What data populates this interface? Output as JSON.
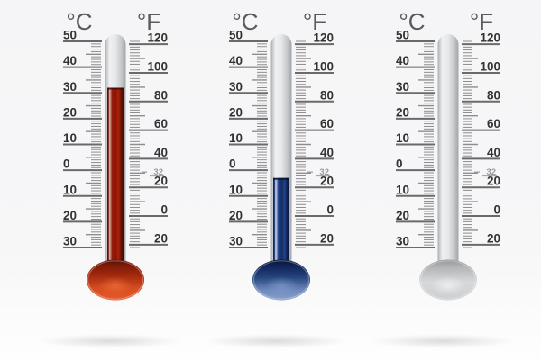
{
  "units": {
    "c": "°C",
    "f": "°F"
  },
  "celsius_scale": {
    "min": -30,
    "max": 50,
    "minor_step": 1,
    "medium_step": 5,
    "major_step": 10,
    "values": [
      50,
      40,
      30,
      20,
      10,
      0,
      -10,
      -20,
      -30
    ],
    "labels": [
      "50",
      "40",
      "30",
      "20",
      "10",
      "0",
      "10",
      "20",
      "30"
    ]
  },
  "fahrenheit_scale": {
    "min": -22,
    "max": 122,
    "minor_step": 2,
    "medium_step": 10,
    "major_step": 20,
    "values": [
      120,
      100,
      80,
      60,
      40,
      20,
      0,
      -20
    ],
    "labels": [
      "120",
      "100",
      "80",
      "60",
      "40",
      "20",
      "0",
      "20"
    ],
    "freezing_mark": {
      "value": 32,
      "label": "32"
    }
  },
  "thermometers": [
    {
      "id": "hot",
      "liquid": "red",
      "liquid_hex": "#9c1a08",
      "reading_c": 32,
      "reading_f": 90
    },
    {
      "id": "cold",
      "liquid": "blue",
      "liquid_hex": "#16306b",
      "reading_c": -3,
      "reading_f": 27
    },
    {
      "id": "empty",
      "liquid": "none",
      "liquid_hex": "#d9dbdd",
      "reading_c": null,
      "reading_f": null
    }
  ],
  "palette": {
    "background_top": "#f5f5f7",
    "background_bottom": "#fefefe",
    "unit_text": "#5a5a5a",
    "scale_text": "#333333",
    "major_tick": "#6a6a6a",
    "minor_tick": "#8d8d8d",
    "freezing_text": "#9a9a9a"
  }
}
